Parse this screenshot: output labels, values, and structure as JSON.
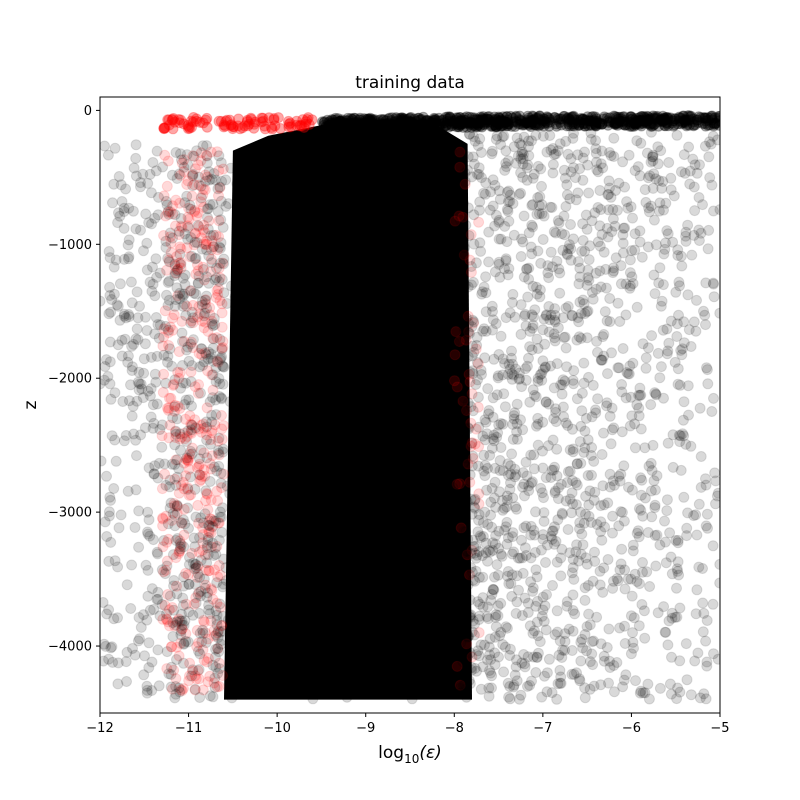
{
  "chart_data": {
    "type": "scatter",
    "title": "training data",
    "xlabel": {
      "prefix": "log",
      "subscript": "10",
      "suffix": "(ε)"
    },
    "ylabel": "z",
    "xlim": [
      -12,
      -5
    ],
    "ylim": [
      -4500,
      100
    ],
    "xticks": [
      -12,
      -11,
      -10,
      -9,
      -8,
      -7,
      -6,
      -5
    ],
    "yticks": [
      0,
      -1000,
      -2000,
      -3000,
      -4000
    ],
    "xtick_labels": [
      "−12",
      "−11",
      "−10",
      "−9",
      "−8",
      "−7",
      "−6",
      "−5"
    ],
    "ytick_labels": [
      "0",
      "−1000",
      "−2000",
      "−3000",
      "−4000"
    ],
    "grid": false,
    "legend": "none",
    "series": [
      {
        "color": "#000000",
        "opacity": 0.15,
        "dense_core": {
          "x": [
            -10.6,
            -7.9
          ],
          "y": [
            -4400,
            -200
          ]
        },
        "outer_scatter": {
          "x": [
            -12,
            -5
          ],
          "y": [
            -4400,
            -50
          ]
        },
        "surface_band": {
          "x": [
            -9.5,
            -5
          ],
          "y": [
            -120,
            -40
          ]
        }
      },
      {
        "color": "#ff0000",
        "opacity": 0.15,
        "left_edge": {
          "x": [
            -11.3,
            -10.6
          ],
          "y": [
            -4350,
            -300
          ]
        },
        "surface_cluster": {
          "x": [
            -11.3,
            -9.6
          ],
          "y": [
            -140,
            -50
          ]
        },
        "right_edge": {
          "x": [
            -8.0,
            -7.7
          ],
          "y": [
            -4300,
            -200
          ]
        }
      }
    ]
  }
}
